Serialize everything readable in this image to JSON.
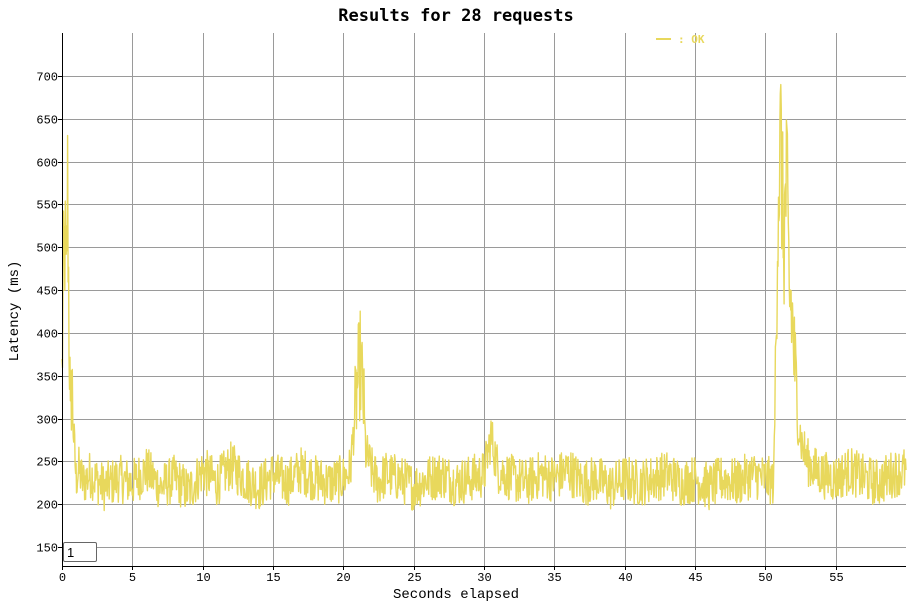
{
  "chart_data": {
    "type": "line",
    "title": "Results for 28 requests",
    "xlabel": "Seconds elapsed",
    "ylabel": "Latency (ms)",
    "xlim": [
      0,
      60
    ],
    "ylim": [
      128,
      750
    ],
    "x_ticks": [
      0,
      5,
      10,
      15,
      20,
      25,
      30,
      35,
      40,
      45,
      50,
      55
    ],
    "y_ticks": [
      150,
      200,
      250,
      300,
      350,
      400,
      450,
      500,
      550,
      600,
      650,
      700
    ],
    "grid": true,
    "legend_position": "top-right",
    "series": [
      {
        "name": ": OK",
        "color": "#e8d85c",
        "x": [
          0,
          0.1,
          0.2,
          0.3,
          0.4,
          0.5,
          0.6,
          0.7,
          0.8,
          0.9,
          1.0,
          1.2,
          1.5,
          2,
          3,
          4,
          5,
          6,
          7,
          8,
          9,
          10,
          11,
          12,
          13,
          14,
          15,
          16,
          17,
          18,
          19,
          20,
          20.5,
          20.8,
          21.0,
          21.2,
          21.4,
          21.6,
          22,
          22.5,
          23,
          24,
          25,
          26,
          27,
          28,
          29,
          30,
          30.5,
          31,
          32,
          33,
          34,
          35,
          36,
          37,
          38,
          39,
          40,
          41,
          42,
          43,
          44,
          45,
          46,
          47,
          48,
          49,
          50,
          50.6,
          50.9,
          51.1,
          51.3,
          51.5,
          51.7,
          51.9,
          52.1,
          52.3,
          52.6,
          53,
          53.5,
          54,
          55,
          56,
          57,
          58,
          59,
          60
        ],
        "y": [
          350,
          460,
          510,
          440,
          570,
          410,
          300,
          350,
          290,
          260,
          230,
          240,
          225,
          235,
          220,
          230,
          225,
          240,
          220,
          230,
          215,
          240,
          225,
          245,
          230,
          220,
          235,
          225,
          240,
          230,
          225,
          230,
          240,
          300,
          340,
          365,
          330,
          260,
          240,
          225,
          235,
          230,
          220,
          230,
          235,
          225,
          230,
          235,
          280,
          240,
          230,
          225,
          235,
          230,
          240,
          225,
          230,
          220,
          230,
          225,
          230,
          235,
          225,
          230,
          220,
          230,
          225,
          235,
          230,
          225,
          560,
          620,
          500,
          580,
          450,
          420,
          360,
          300,
          270,
          250,
          240,
          235,
          230,
          240,
          230,
          225,
          235,
          240
        ]
      }
    ]
  },
  "controls": {
    "page_value": "1"
  }
}
